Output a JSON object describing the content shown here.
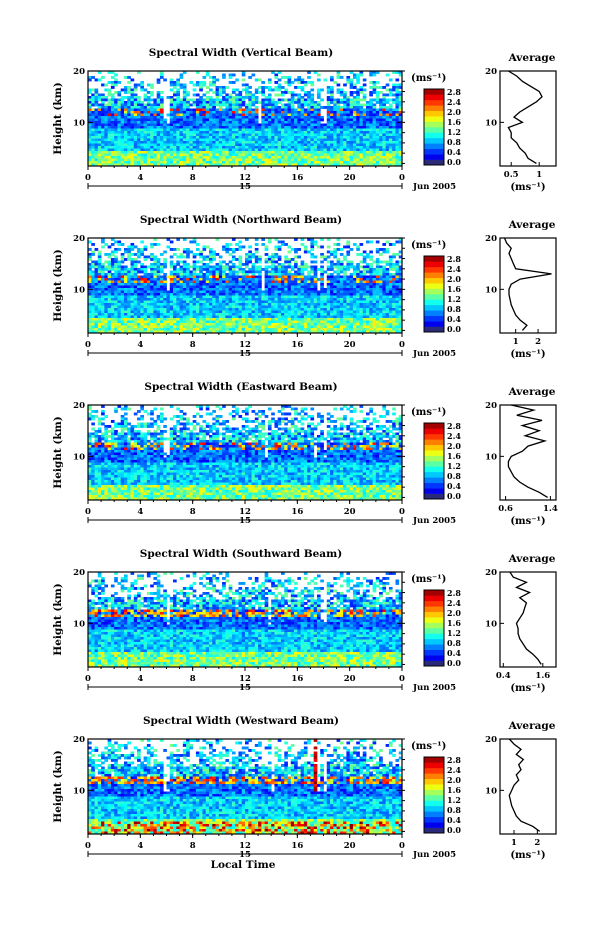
{
  "figure": {
    "xlabel": "Local Time",
    "date_label": "Jun 2005",
    "day_label": "15",
    "colorbar_unit": "(ms⁻¹)",
    "colorbar_ticks": [
      "0.0",
      "0.4",
      "0.8",
      "1.2",
      "1.6",
      "2.0",
      "2.4",
      "2.8"
    ],
    "avg_title": "Average",
    "avg_xlabel": "(ms⁻¹)"
  },
  "chart_data": [
    {
      "type": "heatmap",
      "title": "Spectral Width (Vertical Beam)",
      "ylabel": "Height (km)",
      "xlim": [
        0,
        24
      ],
      "ylim": [
        1.5,
        20
      ],
      "x_ticks": [
        "0",
        "4",
        "8",
        "12",
        "16",
        "20",
        "0"
      ],
      "y_ticks": [
        10,
        20
      ],
      "colorbar_range": [
        0.0,
        2.8
      ],
      "profile": {
        "title": "Average",
        "xlim": [
          0.3,
          1.3
        ],
        "x_ticks": [
          0.5,
          1.0
        ],
        "height": [
          2,
          3,
          4,
          5,
          6,
          7,
          8,
          9,
          10,
          11,
          12,
          13,
          14,
          15,
          16,
          17,
          18,
          19,
          20
        ],
        "value": [
          0.95,
          0.8,
          0.75,
          0.65,
          0.6,
          0.5,
          0.5,
          0.45,
          0.7,
          0.55,
          0.65,
          0.8,
          0.95,
          1.05,
          1.0,
          0.85,
          0.7,
          0.6,
          0.45
        ]
      }
    },
    {
      "type": "heatmap",
      "title": "Spectral Width (Northward Beam)",
      "ylabel": "Height (km)",
      "xlim": [
        0,
        24
      ],
      "ylim": [
        1.5,
        20
      ],
      "x_ticks": [
        "0",
        "4",
        "8",
        "12",
        "16",
        "20",
        "0"
      ],
      "y_ticks": [
        10,
        20
      ],
      "colorbar_range": [
        0.0,
        2.8
      ],
      "profile": {
        "title": "Average",
        "xlim": [
          0.3,
          2.8
        ],
        "x_ticks": [
          1,
          2
        ],
        "height": [
          2,
          3,
          4,
          5,
          6,
          7,
          8,
          9,
          10,
          11,
          12,
          13,
          14,
          15,
          16,
          17,
          18,
          19,
          20
        ],
        "value": [
          1.3,
          1.5,
          1.2,
          1.0,
          0.9,
          0.8,
          0.75,
          0.7,
          0.7,
          0.8,
          1.2,
          2.6,
          1.0,
          0.9,
          0.8,
          0.7,
          0.8,
          0.6,
          0.5
        ]
      }
    },
    {
      "type": "heatmap",
      "title": "Spectral Width (Eastward Beam)",
      "ylabel": "Height (km)",
      "xlim": [
        0,
        24
      ],
      "ylim": [
        1.5,
        20
      ],
      "x_ticks": [
        "0",
        "4",
        "8",
        "12",
        "16",
        "20",
        "0"
      ],
      "y_ticks": [
        10,
        20
      ],
      "colorbar_range": [
        0.0,
        2.8
      ],
      "profile": {
        "title": "Average",
        "xlim": [
          0.5,
          1.5
        ],
        "x_ticks": [
          0.6,
          1.4
        ],
        "height": [
          2,
          3,
          4,
          5,
          6,
          7,
          8,
          9,
          10,
          11,
          12,
          13,
          14,
          15,
          16,
          17,
          18,
          19,
          20
        ],
        "value": [
          1.35,
          1.2,
          1.0,
          0.85,
          0.75,
          0.7,
          0.65,
          0.65,
          0.7,
          0.9,
          1.0,
          1.3,
          0.95,
          1.2,
          0.9,
          1.25,
          0.8,
          1.1,
          0.7
        ]
      }
    },
    {
      "type": "heatmap",
      "title": "Spectral Width (Southward Beam)",
      "ylabel": "Height (km)",
      "xlim": [
        0,
        24
      ],
      "ylim": [
        1.5,
        20
      ],
      "x_ticks": [
        "0",
        "4",
        "8",
        "12",
        "16",
        "20",
        "0"
      ],
      "y_ticks": [
        10,
        20
      ],
      "colorbar_range": [
        0.0,
        2.8
      ],
      "profile": {
        "title": "Average",
        "xlim": [
          0.3,
          2.0
        ],
        "x_ticks": [
          0.4,
          1.6
        ],
        "height": [
          2,
          3,
          4,
          5,
          6,
          7,
          8,
          9,
          10,
          11,
          12,
          13,
          14,
          15,
          16,
          17,
          18,
          19,
          20
        ],
        "value": [
          1.55,
          1.45,
          1.3,
          1.1,
          1.0,
          0.9,
          0.85,
          0.85,
          0.8,
          0.9,
          1.0,
          1.05,
          1.1,
          0.9,
          1.2,
          0.8,
          1.1,
          0.7,
          0.6
        ]
      }
    },
    {
      "type": "heatmap",
      "title": "Spectral Width (Westward Beam)",
      "ylabel": "Height (km)",
      "xlim": [
        0,
        24
      ],
      "ylim": [
        1.5,
        20
      ],
      "x_ticks": [
        "0",
        "4",
        "8",
        "12",
        "16",
        "20",
        "0"
      ],
      "y_ticks": [
        10,
        20
      ],
      "colorbar_range": [
        0.0,
        2.8
      ],
      "profile": {
        "title": "Average",
        "xlim": [
          0.4,
          2.8
        ],
        "x_ticks": [
          1,
          2
        ],
        "height": [
          2,
          3,
          4,
          5,
          6,
          7,
          8,
          9,
          10,
          11,
          12,
          13,
          14,
          15,
          16,
          17,
          18,
          19,
          20
        ],
        "value": [
          2.1,
          1.8,
          1.3,
          1.1,
          1.0,
          0.9,
          0.85,
          0.8,
          0.9,
          1.0,
          1.2,
          1.1,
          1.3,
          1.2,
          1.4,
          1.1,
          1.3,
          1.0,
          0.8
        ]
      }
    }
  ]
}
